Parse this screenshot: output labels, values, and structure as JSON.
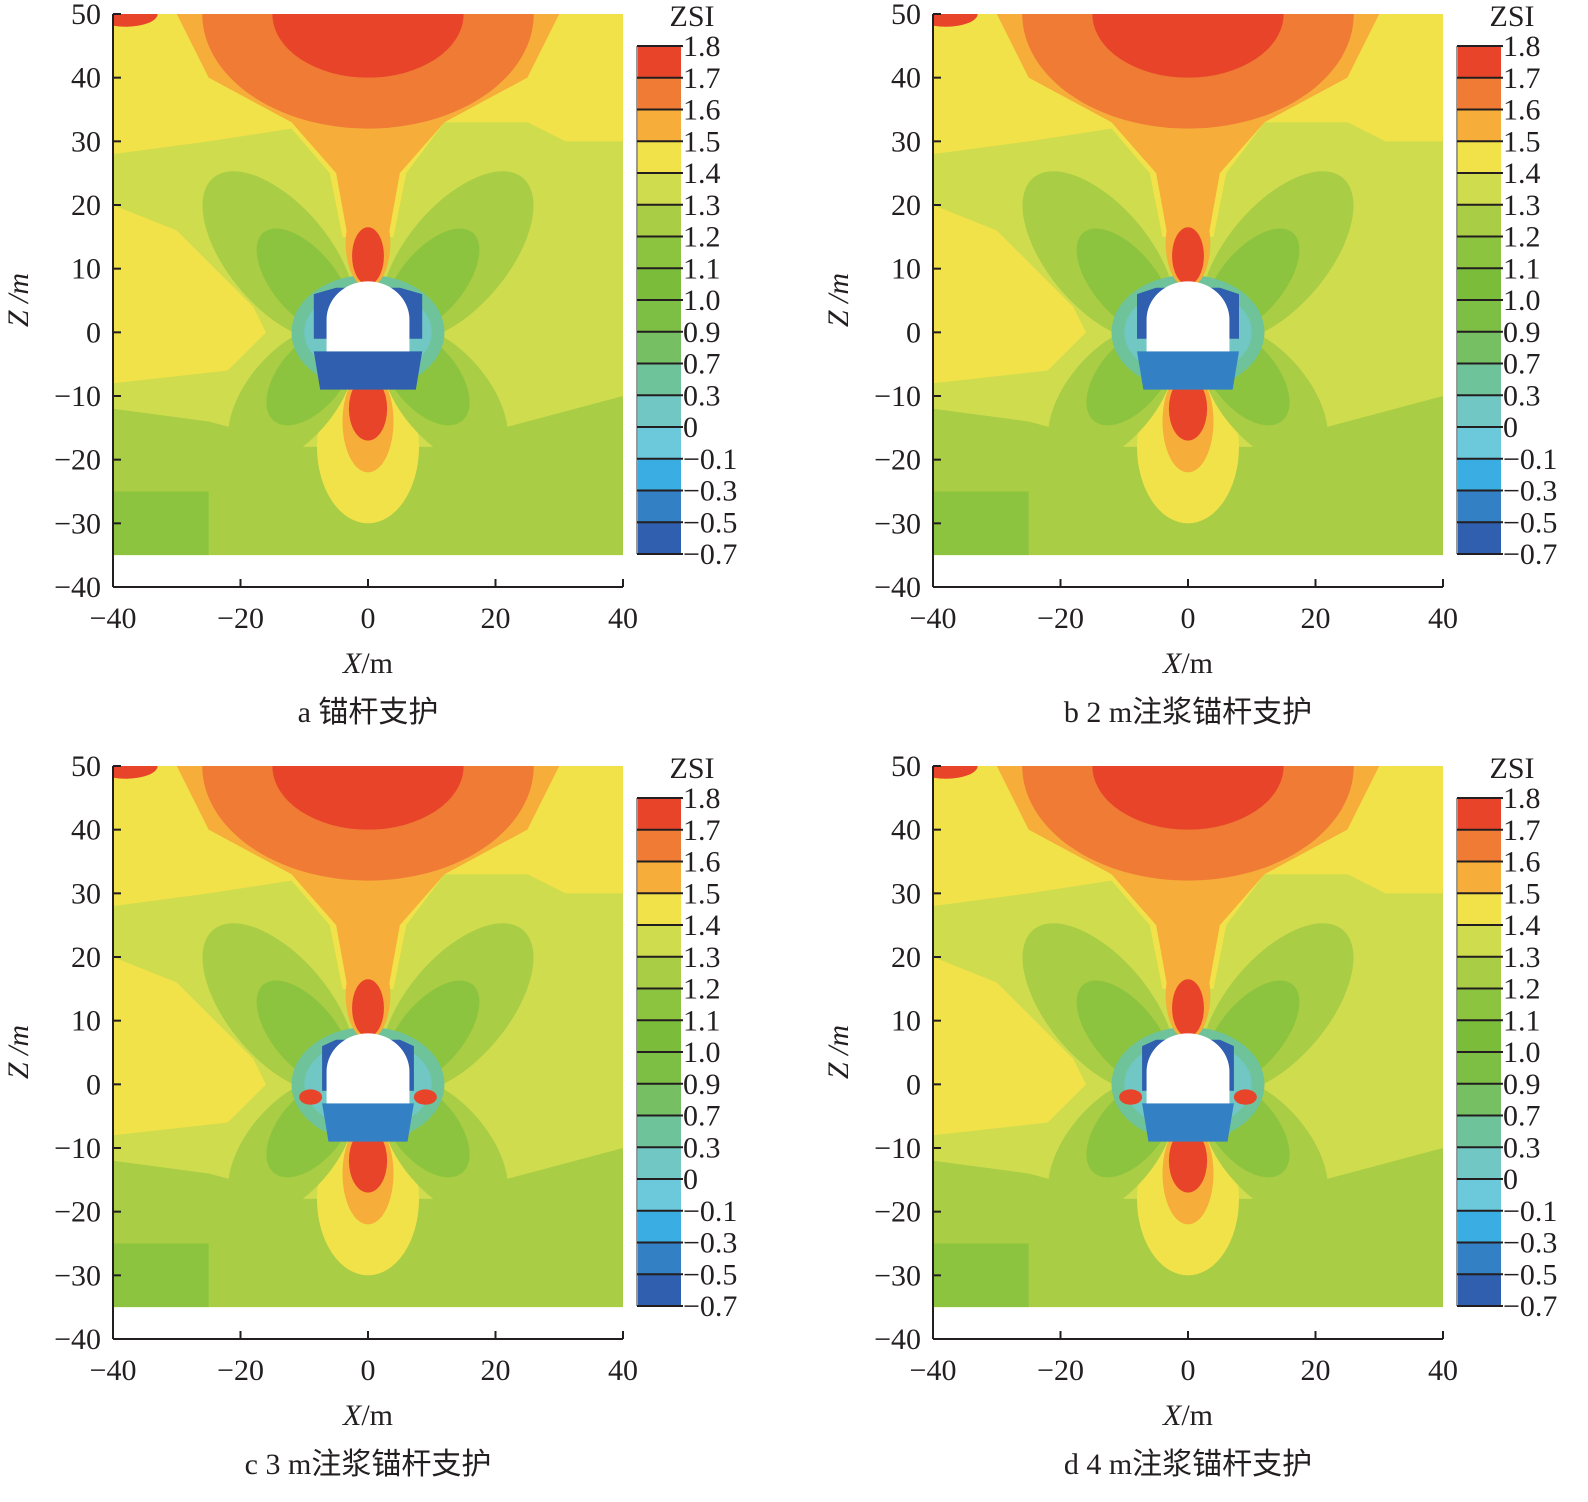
{
  "chart_data": [
    {
      "panel": "a",
      "type": "heatmap",
      "title": "",
      "caption": "a 锚杆支护",
      "xlabel_var": "X",
      "xlabel_unit": "/m",
      "ylabel": "Z /m",
      "xlim": [
        -40,
        40
      ],
      "ylim": [
        -40,
        50
      ],
      "field_zlim": [
        -35,
        50
      ],
      "xticks": [
        "−40",
        "−20",
        "0",
        "20",
        "40"
      ],
      "xtick_values": [
        -40,
        -20,
        0,
        20,
        40
      ],
      "yticks": [
        "50",
        "40",
        "30",
        "20",
        "10",
        "0",
        "−10",
        "−20",
        "−30",
        "−40"
      ],
      "ytick_values": [
        50,
        40,
        30,
        20,
        10,
        0,
        -10,
        -20,
        -30,
        -40
      ],
      "colorbar_title": "ZSI",
      "colorbar_labels": [
        "1.8",
        "1.7",
        "1.6",
        "1.5",
        "1.4",
        "1.3",
        "1.2",
        "1.1",
        "1.0",
        "0.9",
        "0.7",
        "0.3",
        "0",
        "−0.1",
        "−0.3",
        "−0.5",
        "−0.7"
      ],
      "variant": 0
    },
    {
      "panel": "b",
      "type": "heatmap",
      "title": "",
      "caption": "b 2 m注浆锚杆支护",
      "xlabel_var": "X",
      "xlabel_unit": "/m",
      "ylabel": "Z /m",
      "xlim": [
        -40,
        40
      ],
      "ylim": [
        -40,
        50
      ],
      "field_zlim": [
        -35,
        50
      ],
      "xticks": [
        "−40",
        "−20",
        "0",
        "20",
        "40"
      ],
      "xtick_values": [
        -40,
        -20,
        0,
        20,
        40
      ],
      "yticks": [
        "50",
        "40",
        "30",
        "20",
        "10",
        "0",
        "−10",
        "−20",
        "−30",
        "−40"
      ],
      "ytick_values": [
        50,
        40,
        30,
        20,
        10,
        0,
        -10,
        -20,
        -30,
        -40
      ],
      "colorbar_title": "ZSI",
      "colorbar_labels": [
        "1.8",
        "1.7",
        "1.6",
        "1.5",
        "1.4",
        "1.3",
        "1.2",
        "1.1",
        "1.0",
        "0.9",
        "0.7",
        "0.3",
        "0",
        "−0.1",
        "−0.3",
        "−0.5",
        "−0.7"
      ],
      "variant": 1
    },
    {
      "panel": "c",
      "type": "heatmap",
      "title": "",
      "caption": "c 3 m注浆锚杆支护",
      "xlabel_var": "X",
      "xlabel_unit": "/m",
      "ylabel": "Z /m",
      "xlim": [
        -40,
        40
      ],
      "ylim": [
        -40,
        50
      ],
      "field_zlim": [
        -35,
        50
      ],
      "xticks": [
        "−40",
        "−20",
        "0",
        "20",
        "40"
      ],
      "xtick_values": [
        -40,
        -20,
        0,
        20,
        40
      ],
      "yticks": [
        "50",
        "40",
        "30",
        "20",
        "10",
        "0",
        "−10",
        "−20",
        "−30",
        "−40"
      ],
      "ytick_values": [
        50,
        40,
        30,
        20,
        10,
        0,
        -10,
        -20,
        -30,
        -40
      ],
      "colorbar_title": "ZSI",
      "colorbar_labels": [
        "1.8",
        "1.7",
        "1.6",
        "1.5",
        "1.4",
        "1.3",
        "1.2",
        "1.1",
        "1.0",
        "0.9",
        "0.7",
        "0.3",
        "0",
        "−0.1",
        "−0.3",
        "−0.5",
        "−0.7"
      ],
      "variant": 2
    },
    {
      "panel": "d",
      "type": "heatmap",
      "title": "",
      "caption": "d 4 m注浆锚杆支护",
      "xlabel_var": "X",
      "xlabel_unit": "/m",
      "ylabel": "Z /m",
      "xlim": [
        -40,
        40
      ],
      "ylim": [
        -40,
        50
      ],
      "field_zlim": [
        -35,
        50
      ],
      "xticks": [
        "−40",
        "−20",
        "0",
        "20",
        "40"
      ],
      "xtick_values": [
        -40,
        -20,
        0,
        20,
        40
      ],
      "yticks": [
        "50",
        "40",
        "30",
        "20",
        "10",
        "0",
        "−10",
        "−20",
        "−30",
        "−40"
      ],
      "ytick_values": [
        50,
        40,
        30,
        20,
        10,
        0,
        -10,
        -20,
        -30,
        -40
      ],
      "colorbar_title": "ZSI",
      "colorbar_labels": [
        "1.8",
        "1.7",
        "1.6",
        "1.5",
        "1.4",
        "1.3",
        "1.2",
        "1.1",
        "1.0",
        "0.9",
        "0.7",
        "0.3",
        "0",
        "−0.1",
        "−0.3",
        "−0.5",
        "−0.7"
      ],
      "variant": 3
    }
  ],
  "colors": [
    "#e8442a",
    "#ef7b35",
    "#f6ad3a",
    "#f1e24a",
    "#cfdc4e",
    "#a9cd45",
    "#8cc43f",
    "#7bbd3b",
    "#7dbf45",
    "#76bf62",
    "#6fc39a",
    "#70c7c3",
    "#6cc9dc",
    "#3aaee3",
    "#3480c5",
    "#2f5fae"
  ]
}
